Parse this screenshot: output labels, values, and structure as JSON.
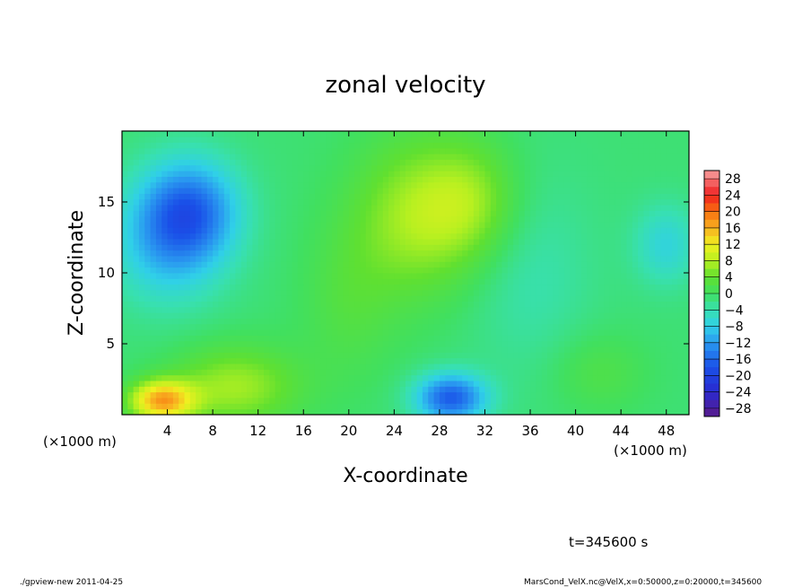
{
  "chart_data": {
    "type": "heatmap",
    "title": "zonal velocity",
    "xlabel": "X-coordinate",
    "ylabel": "Z-coordinate",
    "x_unit_left": "(×1000 m)",
    "x_unit_right": "(×1000 m)",
    "xlim": [
      0,
      50
    ],
    "ylim": [
      0,
      20
    ],
    "x_ticks": [
      4,
      8,
      12,
      16,
      20,
      24,
      28,
      32,
      36,
      40,
      44,
      48
    ],
    "y_ticks": [
      5,
      10,
      15
    ],
    "colorbar": {
      "levels": [
        28,
        24,
        20,
        16,
        12,
        8,
        4,
        0,
        -4,
        -8,
        -12,
        -16,
        -20,
        -24,
        -28
      ],
      "labels": [
        "28",
        "24",
        "20",
        "16",
        "12",
        "8",
        "4",
        "0",
        "−4",
        "−8",
        "−12",
        "−16",
        "−20",
        "−24",
        "−28"
      ],
      "range": [
        -30,
        30
      ]
    },
    "features": [
      {
        "x": 6,
        "z": 14.5,
        "sx": 3,
        "sz": 2.5,
        "value": -13
      },
      {
        "x": 4,
        "z": 12,
        "sx": 3.5,
        "sz": 3,
        "value": -8
      },
      {
        "x": 3.5,
        "z": 1,
        "sx": 2,
        "sz": 1,
        "value": 17
      },
      {
        "x": 10,
        "z": 2,
        "sx": 4,
        "sz": 2,
        "value": 8
      },
      {
        "x": 29,
        "z": 1.2,
        "sx": 2.2,
        "sz": 1.2,
        "value": -16
      },
      {
        "x": 26,
        "z": 14,
        "sx": 4,
        "sz": 4,
        "value": 8
      },
      {
        "x": 31,
        "z": 15,
        "sx": 3,
        "sz": 3,
        "value": 6
      },
      {
        "x": 48,
        "z": 12,
        "sx": 2,
        "sz": 2,
        "value": -6
      },
      {
        "x": 20,
        "z": 8,
        "sx": 3,
        "sz": 4,
        "value": 3
      },
      {
        "x": 42,
        "z": 3,
        "sx": 3,
        "sz": 2,
        "value": 3
      },
      {
        "x": 36,
        "z": 10,
        "sx": 4,
        "sz": 5,
        "value": -3
      }
    ],
    "base_value": -1,
    "time_label": "t=345600 s"
  },
  "footer": {
    "left": "./gpview-new   2011-04-25",
    "right": "MarsCond_VelX.nc@VelX,x=0:50000,z=0:20000,t=345600"
  }
}
